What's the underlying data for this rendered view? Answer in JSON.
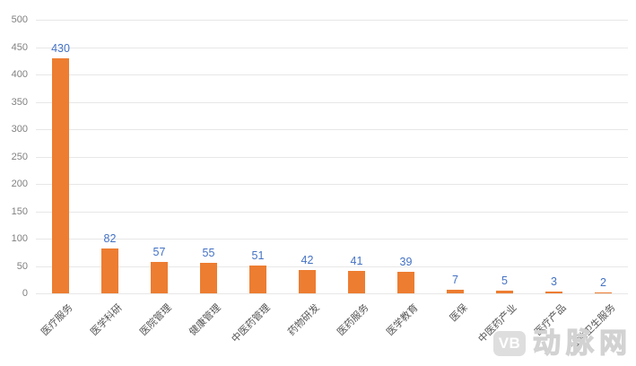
{
  "chart_data": {
    "type": "bar",
    "title": "",
    "xlabel": "",
    "ylabel": "",
    "categories": [
      "医疗服务",
      "医学科研",
      "医院管理",
      "健康管理",
      "中医药管理",
      "药物研发",
      "医药服务",
      "医学教育",
      "医保",
      "中医药产业",
      "医疗产品",
      "公共卫生服务"
    ],
    "values": [
      430,
      82,
      57,
      55,
      51,
      42,
      41,
      39,
      7,
      5,
      3,
      2
    ],
    "ylim": [
      0,
      500
    ],
    "yticks": [
      0,
      50,
      100,
      150,
      200,
      250,
      300,
      350,
      400,
      450,
      500
    ],
    "grid": true,
    "legend": "none",
    "bar_color": "#ED7D31",
    "value_label_color": "#4472C4",
    "gridline_color": "#e7e7e7",
    "ytick_color": "#808080",
    "xtick_color": "#555555"
  },
  "watermark": {
    "logo": "VB",
    "text": "动脉网"
  }
}
